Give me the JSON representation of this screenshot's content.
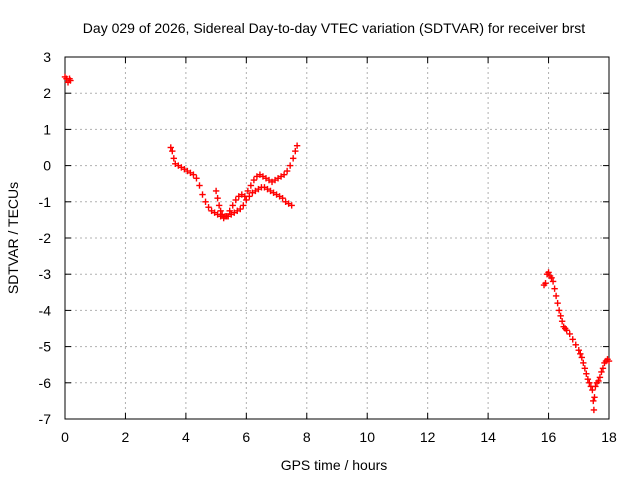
{
  "chart_data": {
    "type": "scatter",
    "title": "Day 029 of 2026, Sidereal Day-to-day VTEC variation (SDTVAR) for receiver brst",
    "xlabel": "GPS time / hours",
    "ylabel": "SDTVAR / TECUs",
    "xlim": [
      0,
      18
    ],
    "ylim": [
      -7,
      3
    ],
    "xticks": [
      0,
      2,
      4,
      6,
      8,
      10,
      12,
      14,
      16,
      18
    ],
    "yticks": [
      3,
      2,
      1,
      0,
      -1,
      -2,
      -3,
      -4,
      -5,
      -6,
      -7
    ],
    "grid": true,
    "marker": "plus",
    "color": "#ff0000",
    "series": [
      {
        "name": "SDTVAR",
        "x": [
          0.0,
          0.05,
          0.1,
          0.15,
          0.18,
          3.5,
          3.55,
          3.6,
          3.65,
          3.75,
          3.85,
          3.95,
          4.05,
          4.15,
          4.25,
          4.35,
          4.45,
          4.55,
          4.65,
          4.75,
          4.85,
          4.95,
          5.05,
          5.15,
          5.25,
          5.35,
          5.45,
          5.55,
          5.65,
          5.75,
          5.85,
          5.95,
          6.05,
          6.15,
          6.25,
          6.35,
          6.45,
          6.55,
          6.65,
          6.75,
          6.85,
          6.95,
          7.05,
          7.15,
          7.25,
          7.35,
          7.45,
          7.55,
          7.62,
          7.68,
          5.0,
          5.05,
          5.1,
          5.15,
          5.2,
          5.3,
          5.4,
          5.5,
          5.6,
          5.7,
          5.8,
          5.9,
          6.0,
          6.1,
          6.2,
          6.3,
          6.4,
          6.5,
          6.6,
          6.7,
          6.8,
          6.9,
          7.0,
          7.1,
          7.2,
          7.3,
          7.4,
          7.5,
          15.85,
          15.9,
          15.95,
          16.0,
          16.05,
          16.1,
          16.15,
          16.2,
          16.25,
          16.3,
          16.35,
          16.4,
          16.45,
          16.5,
          16.55,
          16.6,
          16.7,
          16.8,
          16.9,
          17.0,
          17.05,
          17.1,
          17.15,
          17.2,
          17.25,
          17.3,
          17.35,
          17.4,
          17.45,
          17.48,
          17.5,
          17.52,
          17.55,
          17.6,
          17.65,
          17.7,
          17.75,
          17.8,
          17.85,
          17.9,
          17.95,
          18.0
        ],
        "y": [
          2.45,
          2.4,
          2.3,
          2.4,
          2.35,
          0.5,
          0.4,
          0.2,
          0.05,
          0.0,
          -0.05,
          -0.1,
          -0.15,
          -0.2,
          -0.25,
          -0.35,
          -0.55,
          -0.8,
          -1.0,
          -1.15,
          -1.25,
          -1.3,
          -1.35,
          -1.4,
          -1.45,
          -1.4,
          -1.25,
          -1.1,
          -0.95,
          -0.85,
          -0.8,
          -0.85,
          -0.7,
          -0.55,
          -0.4,
          -0.3,
          -0.25,
          -0.3,
          -0.35,
          -0.4,
          -0.45,
          -0.4,
          -0.35,
          -0.3,
          -0.25,
          -0.15,
          0.0,
          0.2,
          0.4,
          0.55,
          -0.7,
          -0.9,
          -1.1,
          -1.25,
          -1.35,
          -1.4,
          -1.4,
          -1.35,
          -1.3,
          -1.25,
          -1.2,
          -1.1,
          -0.95,
          -0.85,
          -0.75,
          -0.7,
          -0.65,
          -0.6,
          -0.6,
          -0.65,
          -0.7,
          -0.75,
          -0.8,
          -0.85,
          -0.9,
          -1.0,
          -1.05,
          -1.1,
          -3.3,
          -3.25,
          -3.0,
          -2.95,
          -3.05,
          -3.1,
          -3.2,
          -3.4,
          -3.6,
          -3.8,
          -4.0,
          -4.15,
          -4.3,
          -4.45,
          -4.5,
          -4.55,
          -4.65,
          -4.8,
          -4.95,
          -5.1,
          -5.2,
          -5.3,
          -5.45,
          -5.6,
          -5.75,
          -5.9,
          -6.0,
          -6.1,
          -6.2,
          -6.5,
          -6.75,
          -6.4,
          -6.1,
          -6.0,
          -5.95,
          -5.85,
          -5.7,
          -5.6,
          -5.45,
          -5.4,
          -5.35,
          -5.4
        ]
      }
    ]
  }
}
